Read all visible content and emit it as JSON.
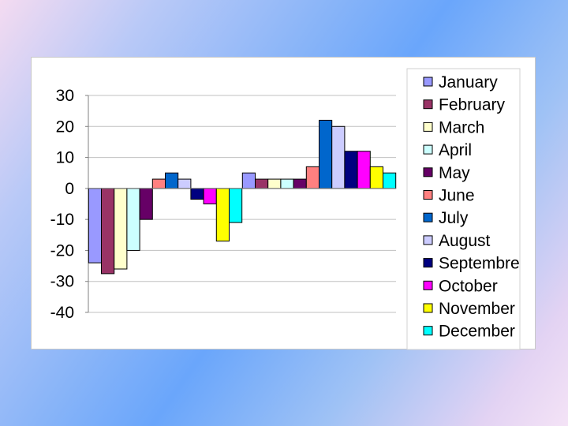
{
  "chart_data": {
    "type": "bar",
    "title": "",
    "xlabel": "",
    "ylabel": "",
    "ylim": [
      -40,
      30
    ],
    "yticks": [
      30,
      20,
      10,
      0,
      -10,
      -20,
      -30,
      -40
    ],
    "grid": true,
    "legend_position": "right",
    "categories": [
      "",
      ""
    ],
    "series": [
      {
        "name": "January",
        "color": "#9999ff",
        "values": [
          -24,
          5
        ]
      },
      {
        "name": "February",
        "color": "#993366",
        "values": [
          -27.5,
          3
        ]
      },
      {
        "name": "March",
        "color": "#ffffcc",
        "values": [
          -26,
          3
        ]
      },
      {
        "name": "April",
        "color": "#ccffff",
        "values": [
          -20,
          3
        ]
      },
      {
        "name": "May",
        "color": "#660066",
        "values": [
          -10,
          3
        ]
      },
      {
        "name": "June",
        "color": "#ff8080",
        "values": [
          3,
          7
        ]
      },
      {
        "name": "July",
        "color": "#0066cc",
        "values": [
          5,
          22
        ]
      },
      {
        "name": "August",
        "color": "#ccccff",
        "values": [
          3,
          20
        ]
      },
      {
        "name": "Septembre",
        "color": "#000080",
        "values": [
          -3.5,
          12
        ]
      },
      {
        "name": "October",
        "color": "#ff00ff",
        "values": [
          -5,
          12
        ]
      },
      {
        "name": "November",
        "color": "#ffff00",
        "values": [
          -17,
          7
        ]
      },
      {
        "name": "December",
        "color": "#00ffff",
        "values": [
          -11,
          5
        ]
      }
    ]
  }
}
